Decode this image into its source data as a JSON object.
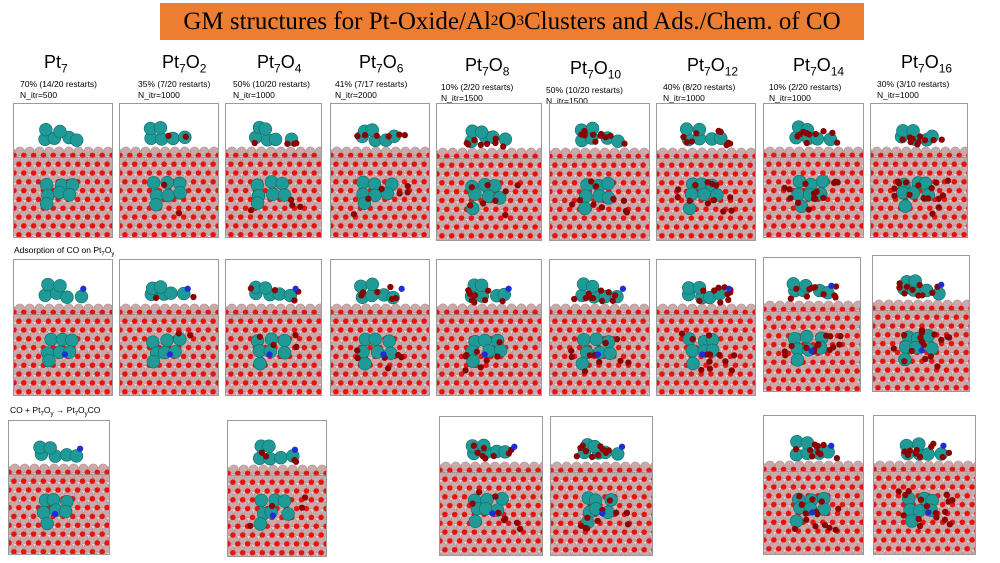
{
  "title": {
    "prefix": "GM structures for Pt-Oxide/Al",
    "sub1": "2",
    "mid": "O",
    "sub2": "3",
    "suffix": "Clusters and Ads./Chem. of CO"
  },
  "columns": [
    {
      "base": "Pt",
      "sub1": "7",
      "o": "",
      "sub2": "",
      "rate": "70% (14/20 restarts)",
      "itr": "N_itr=500"
    },
    {
      "base": "Pt",
      "sub1": "7",
      "o": "O",
      "sub2": "2",
      "rate": "35% (7/20 restarts)",
      "itr": "N_itr=1000"
    },
    {
      "base": "Pt",
      "sub1": "7",
      "o": "O",
      "sub2": "4",
      "rate": "50% (10/20 restarts)",
      "itr": "N_itr=1000"
    },
    {
      "base": "Pt",
      "sub1": "7",
      "o": "O",
      "sub2": "6",
      "rate": "41% (7/17 restarts)",
      "itr": "N_itr=2000"
    },
    {
      "base": "Pt",
      "sub1": "7",
      "o": "O",
      "sub2": "8",
      "rate": "10% (2/20 restarts)",
      "itr": "N_itr=1500"
    },
    {
      "base": "Pt",
      "sub1": "7",
      "o": "O",
      "sub2": "10",
      "rate": "50% (10/20 restarts)",
      "itr": "N_itr=1500"
    },
    {
      "base": "Pt",
      "sub1": "7",
      "o": "O",
      "sub2": "12",
      "rate": "40% (8/20 restarts)",
      "itr": "N_itr=1000"
    },
    {
      "base": "Pt",
      "sub1": "7",
      "o": "O",
      "sub2": "14",
      "rate": "10% (2/20 restarts)",
      "itr": "N_itr=1000"
    },
    {
      "base": "Pt",
      "sub1": "7",
      "o": "O",
      "sub2": "16",
      "rate": "30% (3/10 restarts)",
      "itr": "N_itr=1000"
    }
  ],
  "row2_label": {
    "a": "Adsorption of CO on Pt",
    "b": "7",
    "c": "O",
    "d": "y"
  },
  "row3_label": {
    "a": "CO + Pt",
    "b": "7",
    "c": "O",
    "d": "y",
    "e": " → Pt",
    "f": "7",
    "g": "O",
    "h": "y",
    "i": "CO"
  },
  "colors": {
    "banner": "#ed7d31",
    "pt": "#1f9a96",
    "o_surface": "#e8120f",
    "o_cluster": "#8b0000",
    "al": "#c9a9a9",
    "c": "#1c2fd6",
    "border": "#9a9a9a"
  }
}
